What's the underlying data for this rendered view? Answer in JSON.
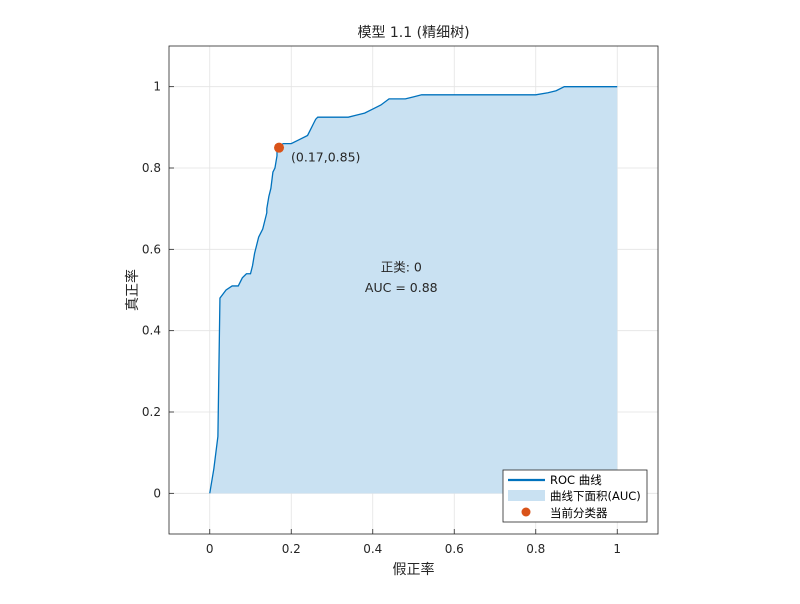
{
  "chart_data": {
    "type": "line",
    "title": "模型 1.1 (精细树)",
    "xlabel": "假正率",
    "ylabel": "真正率",
    "xlim": [
      -0.1,
      1.1
    ],
    "ylim": [
      -0.1,
      1.1
    ],
    "xticks": [
      0,
      0.2,
      0.4,
      0.6,
      0.8,
      1
    ],
    "yticks": [
      0,
      0.2,
      0.4,
      0.6,
      0.8,
      1
    ],
    "xtick_labels": [
      "0",
      "0.2",
      "0.4",
      "0.6",
      "0.8",
      "1"
    ],
    "ytick_labels": [
      "0",
      "0.2",
      "0.4",
      "0.6",
      "0.8",
      "1"
    ],
    "grid": true,
    "series": [
      {
        "name": "ROC 曲线",
        "color": "#0072BD",
        "x": [
          0,
          0.01,
          0.02,
          0.025,
          0.025,
          0.04,
          0.055,
          0.07,
          0.08,
          0.09,
          0.1,
          0.105,
          0.11,
          0.115,
          0.12,
          0.125,
          0.13,
          0.14,
          0.14,
          0.145,
          0.15,
          0.155,
          0.16,
          0.165,
          0.165,
          0.17,
          0.18,
          0.2,
          0.22,
          0.24,
          0.255,
          0.26,
          0.265,
          0.27,
          0.3,
          0.34,
          0.36,
          0.38,
          0.4,
          0.42,
          0.44,
          0.46,
          0.48,
          0.5,
          0.52,
          0.54,
          0.56,
          0.6,
          0.7,
          0.8,
          0.83,
          0.85,
          0.87,
          0.9,
          1.0
        ],
        "y": [
          0,
          0.06,
          0.14,
          0.48,
          0.48,
          0.5,
          0.51,
          0.51,
          0.53,
          0.54,
          0.54,
          0.56,
          0.59,
          0.61,
          0.63,
          0.64,
          0.65,
          0.69,
          0.7,
          0.73,
          0.75,
          0.79,
          0.8,
          0.83,
          0.84,
          0.85,
          0.86,
          0.86,
          0.87,
          0.88,
          0.91,
          0.92,
          0.925,
          0.925,
          0.925,
          0.925,
          0.93,
          0.935,
          0.945,
          0.955,
          0.97,
          0.97,
          0.97,
          0.975,
          0.98,
          0.98,
          0.98,
          0.98,
          0.98,
          0.98,
          0.985,
          0.99,
          1.0,
          1.0,
          1.0
        ]
      }
    ],
    "area": {
      "name": "曲线下面积(AUC)",
      "color": "#C9E1F2"
    },
    "current_point": {
      "name": "当前分类器",
      "x": 0.17,
      "y": 0.85,
      "label": "(0.17,0.85)",
      "color": "#D95319"
    },
    "annotation": {
      "positive_class": "正类: 0",
      "auc_text": "AUC = 0.88"
    },
    "legend": {
      "placement": "bottom-right",
      "entries": [
        "ROC 曲线",
        "曲线下面积(AUC)",
        "当前分类器"
      ]
    }
  }
}
